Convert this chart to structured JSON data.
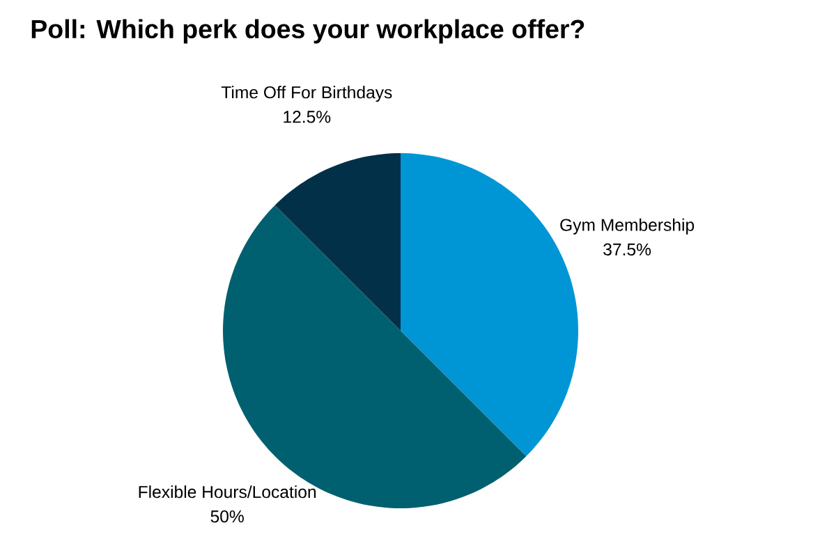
{
  "chart_data": {
    "type": "pie",
    "title": "Poll: Which perk does your workplace offer?",
    "categories": [
      "Gym Membership",
      "Flexible Hours/Location",
      "Time Off For Birthdays"
    ],
    "values": [
      37.5,
      50,
      12.5
    ],
    "value_labels": [
      "37.5%",
      "50%",
      "12.5%"
    ],
    "colors": [
      "#0096d6",
      "#00606f",
      "#033049"
    ]
  }
}
